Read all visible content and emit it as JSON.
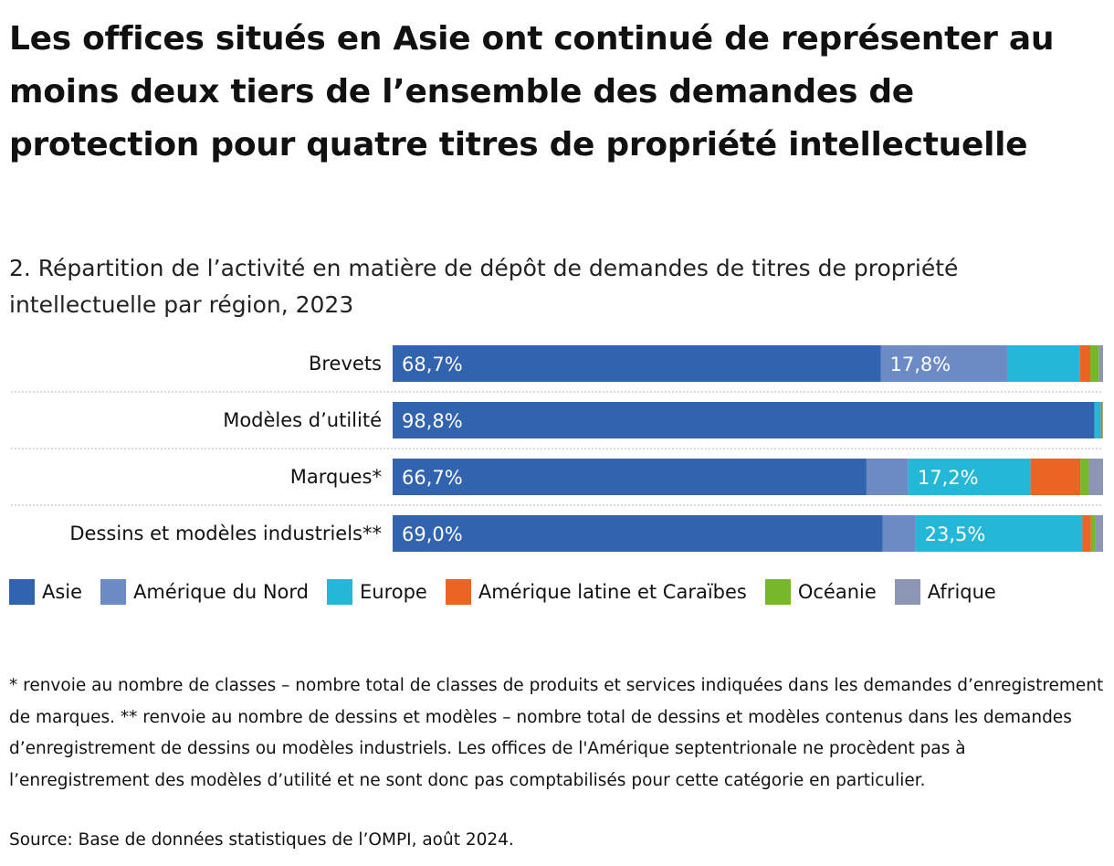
{
  "title": "Les offices situés en Asie ont continué de représenter au moins deux tiers de l’ensemble des demandes de protection pour quatre titres de propriété intellectuelle",
  "subtitle": "2. Répartition de l’activité en matière de dépôt de demandes de titres de propriété intellectuelle par région, 2023",
  "chart_data": {
    "type": "bar",
    "orientation": "horizontal",
    "stacked": true,
    "unit": "%",
    "xlim": [
      0,
      100
    ],
    "categories": [
      "Brevets",
      "Modèles d’utilité",
      "Marques*",
      "Dessins et modèles industriels**"
    ],
    "series": [
      {
        "name": "Asie",
        "color": "#3163ae",
        "values": [
          68.7,
          98.8,
          66.7,
          69.0
        ],
        "labels": [
          "68,7%",
          "98,8%",
          "66,7%",
          "69,0%"
        ]
      },
      {
        "name": "Amérique du Nord",
        "color": "#6c8bc5",
        "values": [
          17.8,
          0,
          5.9,
          4.6
        ],
        "labels": [
          "17,8%",
          "",
          "",
          ""
        ]
      },
      {
        "name": "Europe",
        "color": "#25b7d8",
        "values": [
          10.2,
          0.9,
          17.2,
          23.5
        ],
        "labels": [
          "",
          "",
          "17,2%",
          "23,5%"
        ]
      },
      {
        "name": "Amérique latine et Caraïbes",
        "color": "#ec6424",
        "values": [
          1.5,
          0.2,
          7.0,
          1.2
        ],
        "labels": [
          "",
          "",
          "",
          ""
        ]
      },
      {
        "name": "Océanie",
        "color": "#76b82a",
        "values": [
          1.2,
          0.05,
          1.2,
          0.6
        ],
        "labels": [
          "",
          "",
          "",
          ""
        ]
      },
      {
        "name": "Afrique",
        "color": "#8c96b4",
        "values": [
          0.6,
          0.05,
          2.0,
          1.1
        ],
        "labels": [
          "",
          "",
          "",
          ""
        ]
      }
    ]
  },
  "footnote": "* renvoie au nombre de classes – nombre total de classes de produits et services indiquées dans les demandes d’enregistrement de marques. ** renvoie au nombre de dessins et modèles – nombre total de dessins et modèles contenus dans les demandes d’enregistrement de dessins ou modèles industriels. Les offices de l'Amérique septentrionale ne procèdent pas à l’enregistrement des modèles d’utilité et ne sont donc pas comptabilisés pour cette catégorie en particulier.",
  "source": "Source: Base de données statistiques de l’OMPI, août 2024."
}
